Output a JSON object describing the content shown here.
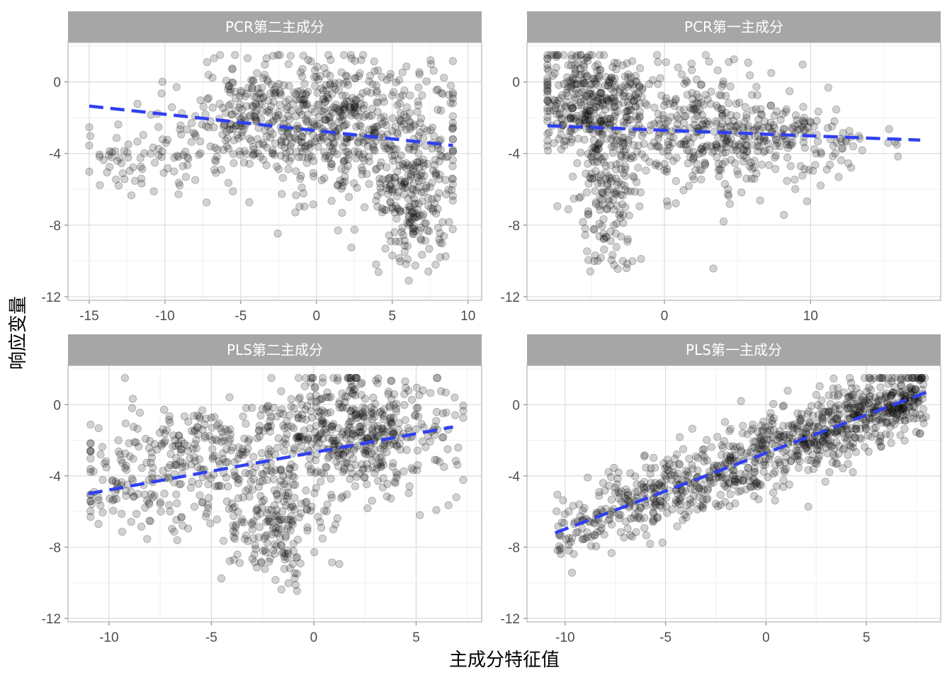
{
  "figure": {
    "xlabel": "主成分特征值",
    "ylabel": "响应变量"
  },
  "chart_data": [
    {
      "type": "scatter",
      "title": "PCR第二主成分",
      "xlim": [
        -16.4,
        10.9
      ],
      "ylim": [
        -12.2,
        2.2
      ],
      "xticks": [
        -15,
        -10,
        -5,
        0,
        5,
        10
      ],
      "xtick_labels": [
        "-15",
        "-10",
        "-5",
        "0",
        "5",
        "10"
      ],
      "yticks": [
        0,
        -4,
        -8,
        -12
      ],
      "ytick_labels": [
        "0",
        "-4",
        "-8",
        "-12"
      ],
      "fit_line": {
        "style": "dashed",
        "color": "#3040f0",
        "x": [
          -15,
          9
        ],
        "y": [
          -1.35,
          -3.55
        ]
      },
      "points": {
        "n": 1000,
        "x_range": [
          -15,
          9
        ],
        "y_range": [
          -11.6,
          1.5
        ],
        "clusters": [
          {
            "cx": 1.5,
            "cy": -2.5,
            "sx": 4.0,
            "sy": 2.0,
            "weight": 0.55
          },
          {
            "cx": -4.0,
            "cy": -1.5,
            "sx": 2.5,
            "sy": 1.8,
            "weight": 0.15
          },
          {
            "cx": -11.0,
            "cy": -4.3,
            "sx": 2.4,
            "sy": 1.1,
            "weight": 0.1
          },
          {
            "cx": 6.5,
            "cy": -6.5,
            "sx": 1.3,
            "sy": 1.8,
            "weight": 0.2
          }
        ]
      }
    },
    {
      "type": "scatter",
      "title": "PCR第一主成分",
      "xlim": [
        -9.4,
        18.9
      ],
      "ylim": [
        -12.2,
        2.2
      ],
      "xticks": [
        0,
        10
      ],
      "xtick_labels": [
        "0",
        "10"
      ],
      "yticks": [
        0,
        -4,
        -8,
        -12
      ],
      "ytick_labels": [
        "0",
        "-4",
        "-8",
        "-12"
      ],
      "fit_line": {
        "style": "dashed",
        "color": "#3040f0",
        "x": [
          -8,
          17.5
        ],
        "y": [
          -2.45,
          -3.25
        ]
      },
      "points": {
        "n": 1000,
        "x_range": [
          -8,
          18
        ],
        "y_range": [
          -11.6,
          1.5
        ],
        "clusters": [
          {
            "cx": -5.0,
            "cy": -1.0,
            "sx": 2.0,
            "sy": 1.6,
            "weight": 0.3
          },
          {
            "cx": 1.0,
            "cy": -2.5,
            "sx": 3.5,
            "sy": 1.8,
            "weight": 0.35
          },
          {
            "cx": 7.0,
            "cy": -3.3,
            "sx": 3.5,
            "sy": 1.0,
            "weight": 0.2
          },
          {
            "cx": -4.0,
            "cy": -6.5,
            "sx": 1.0,
            "sy": 1.8,
            "weight": 0.15
          }
        ]
      }
    },
    {
      "type": "scatter",
      "title": "PLS第二主成分",
      "xlim": [
        -12.0,
        8.2
      ],
      "ylim": [
        -12.2,
        2.2
      ],
      "xticks": [
        -10,
        -5,
        0,
        5
      ],
      "xtick_labels": [
        "-10",
        "-5",
        "0",
        "5"
      ],
      "yticks": [
        0,
        -4,
        -8,
        -12
      ],
      "ytick_labels": [
        "0",
        "-4",
        "-8",
        "-12"
      ],
      "fit_line": {
        "style": "dashed",
        "color": "#3040f0",
        "x": [
          -11,
          6.8
        ],
        "y": [
          -5.0,
          -1.25
        ]
      },
      "points": {
        "n": 1000,
        "x_range": [
          -10.9,
          7.3
        ],
        "y_range": [
          -11.6,
          1.5
        ],
        "clusters": [
          {
            "cx": 2.0,
            "cy": -1.5,
            "sx": 2.5,
            "sy": 1.8,
            "weight": 0.5
          },
          {
            "cx": -5.0,
            "cy": -3.0,
            "sx": 2.5,
            "sy": 1.6,
            "weight": 0.25
          },
          {
            "cx": -2.0,
            "cy": -7.0,
            "sx": 1.3,
            "sy": 1.5,
            "weight": 0.15
          },
          {
            "cx": -9.5,
            "cy": -4.5,
            "sx": 1.5,
            "sy": 1.3,
            "weight": 0.1
          }
        ]
      }
    },
    {
      "type": "scatter",
      "title": "PLS第一主成分",
      "xlim": [
        -11.9,
        8.7
      ],
      "ylim": [
        -12.2,
        2.2
      ],
      "xticks": [
        -10,
        -5,
        0,
        5
      ],
      "xtick_labels": [
        "-10",
        "-5",
        "0",
        "5"
      ],
      "yticks": [
        0,
        -4,
        -8,
        -12
      ],
      "ytick_labels": [
        "0",
        "-4",
        "-8",
        "-12"
      ],
      "fit_line": {
        "style": "dashed",
        "color": "#3040f0",
        "x": [
          -10.5,
          8
        ],
        "y": [
          -7.2,
          0.7
        ]
      },
      "points": {
        "n": 1000,
        "x_range": [
          -10.6,
          8
        ],
        "y_range": [
          -11.6,
          1.5
        ],
        "trend": {
          "slope": 0.43,
          "intercept": -2.65,
          "noise_sd": 1.1
        }
      }
    }
  ]
}
